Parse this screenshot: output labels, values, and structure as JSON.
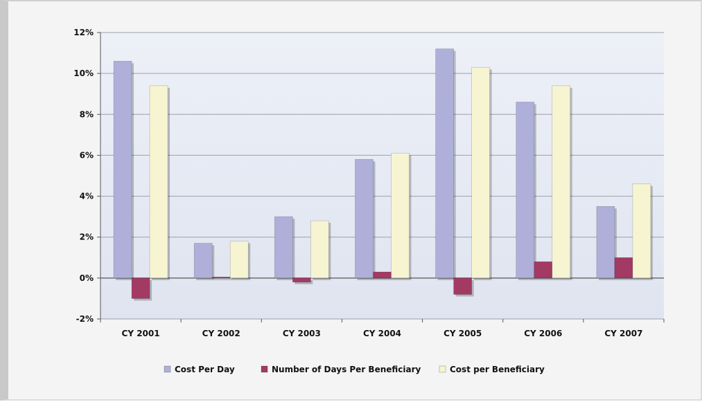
{
  "chart_data": {
    "type": "bar",
    "categories": [
      "CY 2001",
      "CY 2002",
      "CY 2003",
      "CY 2004",
      "CY 2005",
      "CY 2006",
      "CY 2007"
    ],
    "series": [
      {
        "name": "Cost Per Day",
        "values": [
          10.6,
          1.7,
          3.0,
          5.8,
          11.2,
          8.6,
          3.5
        ],
        "color": "#aeb0da"
      },
      {
        "name": "Number of Days Per Beneficiary",
        "values": [
          -1.0,
          0.05,
          -0.2,
          0.3,
          -0.8,
          0.8,
          1.0
        ],
        "color": "#a33a64"
      },
      {
        "name": "Cost per Beneficiary",
        "values": [
          9.4,
          1.8,
          2.8,
          6.1,
          10.3,
          9.4,
          4.6
        ],
        "color": "#f7f4d2"
      }
    ],
    "y_ticks": [
      -2,
      0,
      2,
      4,
      6,
      8,
      10,
      12
    ],
    "y_tick_labels": [
      "-2%",
      "0%",
      "2%",
      "4%",
      "6%",
      "8%",
      "10%",
      "12%"
    ],
    "ylim": [
      -2,
      12
    ],
    "grid": true,
    "legend_position": "bottom",
    "plot_background": "#e3e7f2"
  }
}
